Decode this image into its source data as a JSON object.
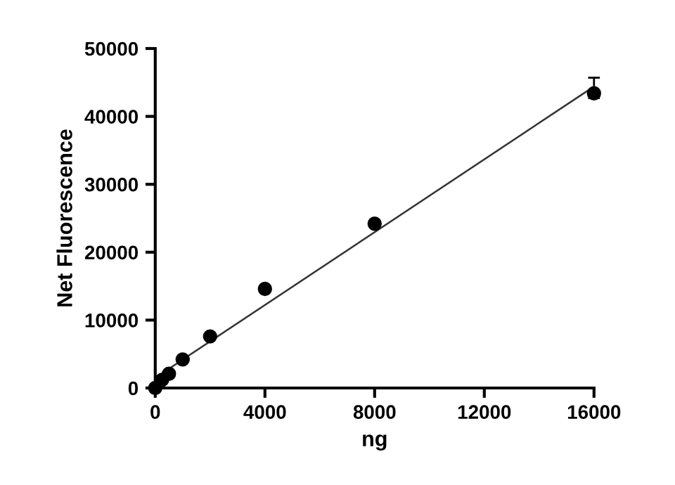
{
  "chart_data": {
    "type": "scatter",
    "xlabel": "ng",
    "ylabel": "Net Fluorescence",
    "x": [
      0,
      250,
      500,
      1000,
      2000,
      4000,
      8000,
      16000
    ],
    "series": [
      {
        "color": "#000000",
        "marker": "circle",
        "values": [
          0,
          1200,
          2100,
          4200,
          7600,
          14600,
          24200,
          43400
        ],
        "errors": [
          null,
          null,
          null,
          null,
          null,
          null,
          null,
          [
            42700,
            45700
          ]
        ]
      },
      {
        "type": "line",
        "color": "#333333",
        "line_style": "solid",
        "marker": "none",
        "x": [
          0,
          16000
        ],
        "values": [
          1500,
          44400
        ]
      }
    ],
    "xlim": [
      0,
      16000
    ],
    "ylim": [
      0,
      50000
    ],
    "xticks": [
      0,
      4000,
      8000,
      12000,
      16000
    ],
    "yticks": [
      0,
      10000,
      20000,
      30000,
      40000,
      50000
    ],
    "grid": false
  }
}
